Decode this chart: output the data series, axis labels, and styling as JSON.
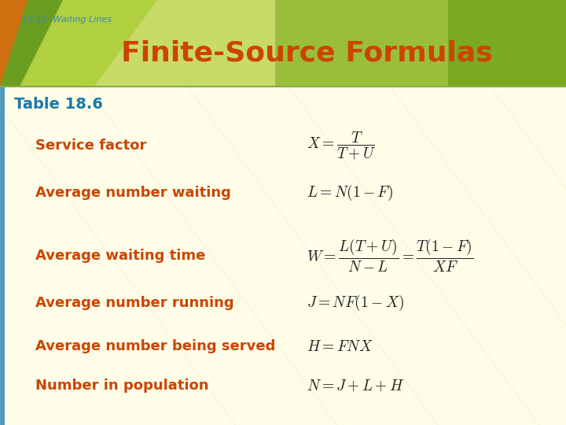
{
  "title": "Finite-Source Formulas",
  "header_label": "18-15  Waiting Lines",
  "table_label": "Table 18.6",
  "bg_color": "#fdfde8",
  "header_bg_color_light": "#d4e47a",
  "header_bg_color_mid": "#a8c840",
  "header_bg_color_dark": "#7aaa20",
  "title_color": "#cc4400",
  "table_label_color": "#1a7aaa",
  "label_color": "#cc4400",
  "header_small_label_color": "#4488aa",
  "rows": [
    {
      "label": "Service factor",
      "formula": "$X = \\dfrac{T}{T+U}$"
    },
    {
      "label": "Average number waiting",
      "formula": "$L = N(1-F)$"
    },
    {
      "label": "Average waiting time",
      "formula": "$W = \\dfrac{L(T+U)}{N-L} = \\dfrac{T(1-F)}{XF}$"
    },
    {
      "label": "Average number running",
      "formula": "$J = NF(1-X)$"
    },
    {
      "label": "Average number being served",
      "formula": "$H = FNX$"
    },
    {
      "label": "Number in population",
      "formula": "$N = J+L+H$"
    }
  ]
}
